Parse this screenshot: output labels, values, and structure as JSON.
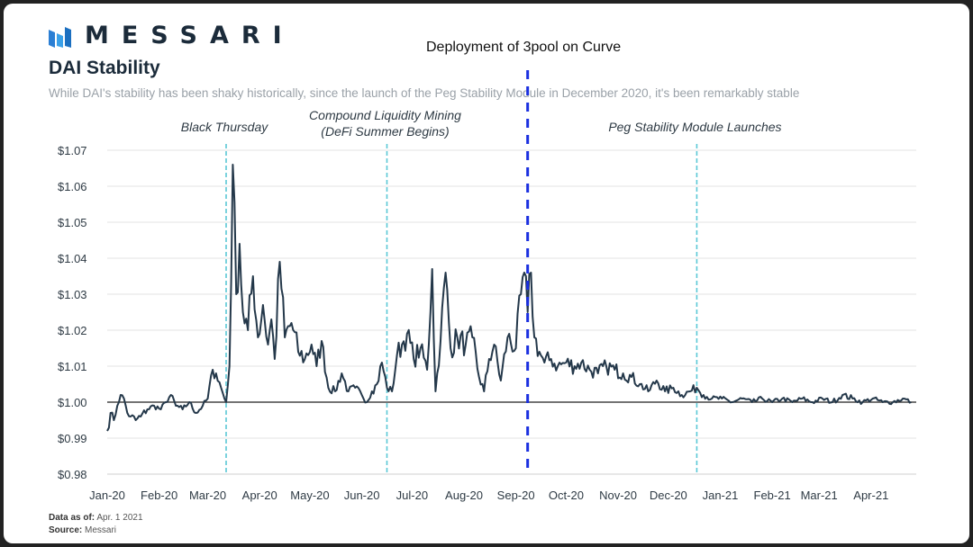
{
  "brand": {
    "wordmark": "MESSARI",
    "logo_icon": "messari-logo-icon"
  },
  "title": "DAI Stability",
  "subtitle": "While DAI's stability has been shaky historically, since the launch of the Peg Stability Module in December 2020,  it's been remarkably stable",
  "overlay_label": "Deployment of 3pool on Curve",
  "footer": {
    "asof_key": "Data as of:",
    "asof_value": "Apr. 1 2021",
    "source_key": "Source:",
    "source_value": "Messari"
  },
  "colors": {
    "line": "#24384a",
    "event": "#5bc8d6",
    "overlay": "#1a2fe0",
    "peg": "#222222",
    "grid": "#e3e3e3"
  },
  "chart_data": {
    "type": "line",
    "title": "DAI Stability",
    "ylim": [
      0.98,
      1.07
    ],
    "y_ticks": [
      {
        "value": 0.98,
        "label": "$0.98"
      },
      {
        "value": 0.99,
        "label": "$0.99"
      },
      {
        "value": 1.0,
        "label": "$1.00"
      },
      {
        "value": 1.01,
        "label": "$1.01"
      },
      {
        "value": 1.02,
        "label": "$1.02"
      },
      {
        "value": 1.03,
        "label": "$1.03"
      },
      {
        "value": 1.04,
        "label": "$1.04"
      },
      {
        "value": 1.05,
        "label": "$1.05"
      },
      {
        "value": 1.06,
        "label": "$1.06"
      },
      {
        "value": 1.07,
        "label": "$1.07"
      }
    ],
    "x_ticks": [
      "Jan-20",
      "Feb-20",
      "Mar-20",
      "Apr-20",
      "May-20",
      "Jun-20",
      "Jul-20",
      "Aug-20",
      "Sep-20",
      "Oct-20",
      "Nov-20",
      "Dec-20",
      "Jan-21",
      "Feb-21",
      "Mar-21",
      "Apr-21"
    ],
    "grid": true,
    "reference_line": 1.0,
    "events": [
      {
        "label": "Black Thursday",
        "date": "2020-03-12"
      },
      {
        "label": "Compound Liquidity Mining|(DeFi Summer Begins)",
        "date": "2020-06-16"
      },
      {
        "label": "Peg Stability Module Launches",
        "date": "2020-12-18"
      }
    ],
    "overlay_event": {
      "label": "Deployment of 3pool on Curve",
      "date": "2020-09-08"
    },
    "series": [
      {
        "values": [
          [
            "2020-01-01",
            0.992
          ],
          [
            "2020-01-03",
            0.997
          ],
          [
            "2020-01-05",
            0.995
          ],
          [
            "2020-01-07",
            0.999
          ],
          [
            "2020-01-09",
            1.002
          ],
          [
            "2020-01-11",
            1.001
          ],
          [
            "2020-01-13",
            0.997
          ],
          [
            "2020-01-15",
            0.996
          ],
          [
            "2020-01-18",
            0.995
          ],
          [
            "2020-01-21",
            0.996
          ],
          [
            "2020-01-25",
            0.998
          ],
          [
            "2020-01-29",
            0.999
          ],
          [
            "2020-02-02",
            0.998
          ],
          [
            "2020-02-05",
            1.0
          ],
          [
            "2020-02-08",
            1.002
          ],
          [
            "2020-02-11",
            0.999
          ],
          [
            "2020-02-15",
            0.998
          ],
          [
            "2020-02-19",
            1.0
          ],
          [
            "2020-02-23",
            0.997
          ],
          [
            "2020-02-27",
            0.999
          ],
          [
            "2020-03-01",
            1.001
          ],
          [
            "2020-03-04",
            1.009
          ],
          [
            "2020-03-06",
            1.008
          ],
          [
            "2020-03-09",
            1.004
          ],
          [
            "2020-03-11",
            1.001
          ],
          [
            "2020-03-12",
            1.0
          ],
          [
            "2020-03-14",
            1.01
          ],
          [
            "2020-03-16",
            1.066
          ],
          [
            "2020-03-18",
            1.03
          ],
          [
            "2020-03-20",
            1.044
          ],
          [
            "2020-03-22",
            1.025
          ],
          [
            "2020-03-25",
            1.02
          ],
          [
            "2020-03-28",
            1.035
          ],
          [
            "2020-03-31",
            1.018
          ],
          [
            "2020-04-03",
            1.027
          ],
          [
            "2020-04-06",
            1.016
          ],
          [
            "2020-04-08",
            1.023
          ],
          [
            "2020-04-10",
            1.012
          ],
          [
            "2020-04-13",
            1.039
          ],
          [
            "2020-04-16",
            1.018
          ],
          [
            "2020-04-20",
            1.022
          ],
          [
            "2020-04-24",
            1.014
          ],
          [
            "2020-04-28",
            1.012
          ],
          [
            "2020-05-02",
            1.016
          ],
          [
            "2020-05-05",
            1.01
          ],
          [
            "2020-05-08",
            1.017
          ],
          [
            "2020-05-12",
            1.004
          ],
          [
            "2020-05-16",
            1.003
          ],
          [
            "2020-05-20",
            1.008
          ],
          [
            "2020-05-24",
            1.003
          ],
          [
            "2020-05-28",
            1.004
          ],
          [
            "2020-06-01",
            1.002
          ],
          [
            "2020-06-04",
            1.0
          ],
          [
            "2020-06-07",
            1.003
          ],
          [
            "2020-06-10",
            1.005
          ],
          [
            "2020-06-13",
            1.011
          ],
          [
            "2020-06-16",
            1.004
          ],
          [
            "2020-06-19",
            1.003
          ],
          [
            "2020-06-22",
            1.013
          ],
          [
            "2020-06-25",
            1.016
          ],
          [
            "2020-06-28",
            1.019
          ],
          [
            "2020-07-02",
            1.012
          ],
          [
            "2020-07-06",
            1.015
          ],
          [
            "2020-07-10",
            1.009
          ],
          [
            "2020-07-13",
            1.037
          ],
          [
            "2020-07-15",
            1.003
          ],
          [
            "2020-07-18",
            1.017
          ],
          [
            "2020-07-21",
            1.036
          ],
          [
            "2020-07-24",
            1.015
          ],
          [
            "2020-07-28",
            1.018
          ],
          [
            "2020-08-02",
            1.016
          ],
          [
            "2020-08-06",
            1.018
          ],
          [
            "2020-08-10",
            1.007
          ],
          [
            "2020-08-13",
            1.003
          ],
          [
            "2020-08-16",
            1.012
          ],
          [
            "2020-08-19",
            1.016
          ],
          [
            "2020-08-23",
            1.006
          ],
          [
            "2020-08-27",
            1.018
          ],
          [
            "2020-09-01",
            1.015
          ],
          [
            "2020-09-04",
            1.03
          ],
          [
            "2020-09-06",
            1.036
          ],
          [
            "2020-09-08",
            1.025
          ],
          [
            "2020-09-10",
            1.036
          ],
          [
            "2020-09-12",
            1.018
          ],
          [
            "2020-09-15",
            1.014
          ],
          [
            "2020-09-18",
            1.011
          ],
          [
            "2020-09-22",
            1.012
          ],
          [
            "2020-09-26",
            1.01
          ],
          [
            "2020-10-01",
            1.011
          ],
          [
            "2020-10-06",
            1.01
          ],
          [
            "2020-10-10",
            1.011
          ],
          [
            "2020-10-15",
            1.009
          ],
          [
            "2020-10-20",
            1.008
          ],
          [
            "2020-10-25",
            1.01
          ],
          [
            "2020-10-30",
            1.009
          ],
          [
            "2020-11-04",
            1.008
          ],
          [
            "2020-11-09",
            1.007
          ],
          [
            "2020-11-14",
            1.005
          ],
          [
            "2020-11-19",
            1.003
          ],
          [
            "2020-11-24",
            1.006
          ],
          [
            "2020-11-29",
            1.003
          ],
          [
            "2020-12-04",
            1.004
          ],
          [
            "2020-12-09",
            1.002
          ],
          [
            "2020-12-14",
            1.003
          ],
          [
            "2020-12-18",
            1.004
          ],
          [
            "2020-12-22",
            1.002
          ],
          [
            "2020-12-27",
            1.001
          ],
          [
            "2021-01-02",
            1.001
          ],
          [
            "2021-01-08",
            1.0
          ],
          [
            "2021-01-14",
            1.001
          ],
          [
            "2021-01-20",
            1.0
          ],
          [
            "2021-01-26",
            1.001
          ],
          [
            "2021-02-01",
            1.0
          ],
          [
            "2021-02-07",
            1.001
          ],
          [
            "2021-02-13",
            1.0
          ],
          [
            "2021-02-19",
            1.001
          ],
          [
            "2021-02-25",
            1.0
          ],
          [
            "2021-03-03",
            1.001
          ],
          [
            "2021-03-09",
            1.0
          ],
          [
            "2021-03-15",
            1.002
          ],
          [
            "2021-03-21",
            1.001
          ],
          [
            "2021-03-27",
            1.0
          ],
          [
            "2021-04-02",
            1.001
          ],
          [
            "2021-04-08",
            1.0
          ],
          [
            "2021-04-14",
            1.0
          ],
          [
            "2021-04-20",
            1.001
          ],
          [
            "2021-04-25",
            1.0
          ]
        ]
      }
    ]
  }
}
